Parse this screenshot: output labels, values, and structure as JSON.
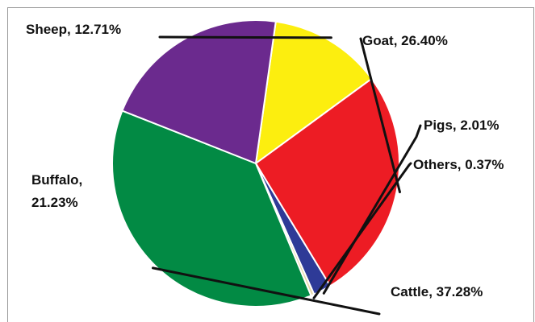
{
  "chart_data": {
    "type": "pie",
    "slices": [
      {
        "label": "Sheep",
        "value": 12.71,
        "display": "Sheep, 12.71%",
        "color": "#fcee0f"
      },
      {
        "label": "Goat",
        "value": 26.4,
        "display": "Goat, 26.40%",
        "color": "#ed1c24"
      },
      {
        "label": "Pigs",
        "value": 2.01,
        "display": "Pigs, 2.01%",
        "color": "#2e3a97"
      },
      {
        "label": "Others",
        "value": 0.37,
        "display": "Others, 0.37%",
        "color": "#e8d9a8"
      },
      {
        "label": "Cattle",
        "value": 37.28,
        "display": "Cattle, 37.28%",
        "color": "#028a44"
      },
      {
        "label": "Buffalo",
        "value": 21.23,
        "display_lines": [
          "Buffalo,",
          "21.23%"
        ],
        "color": "#6b2a8e"
      }
    ],
    "start_angle_deg": 82,
    "direction": "clockwise",
    "slice_border_color": "#ffffff",
    "leader_line_color": "#111111"
  }
}
